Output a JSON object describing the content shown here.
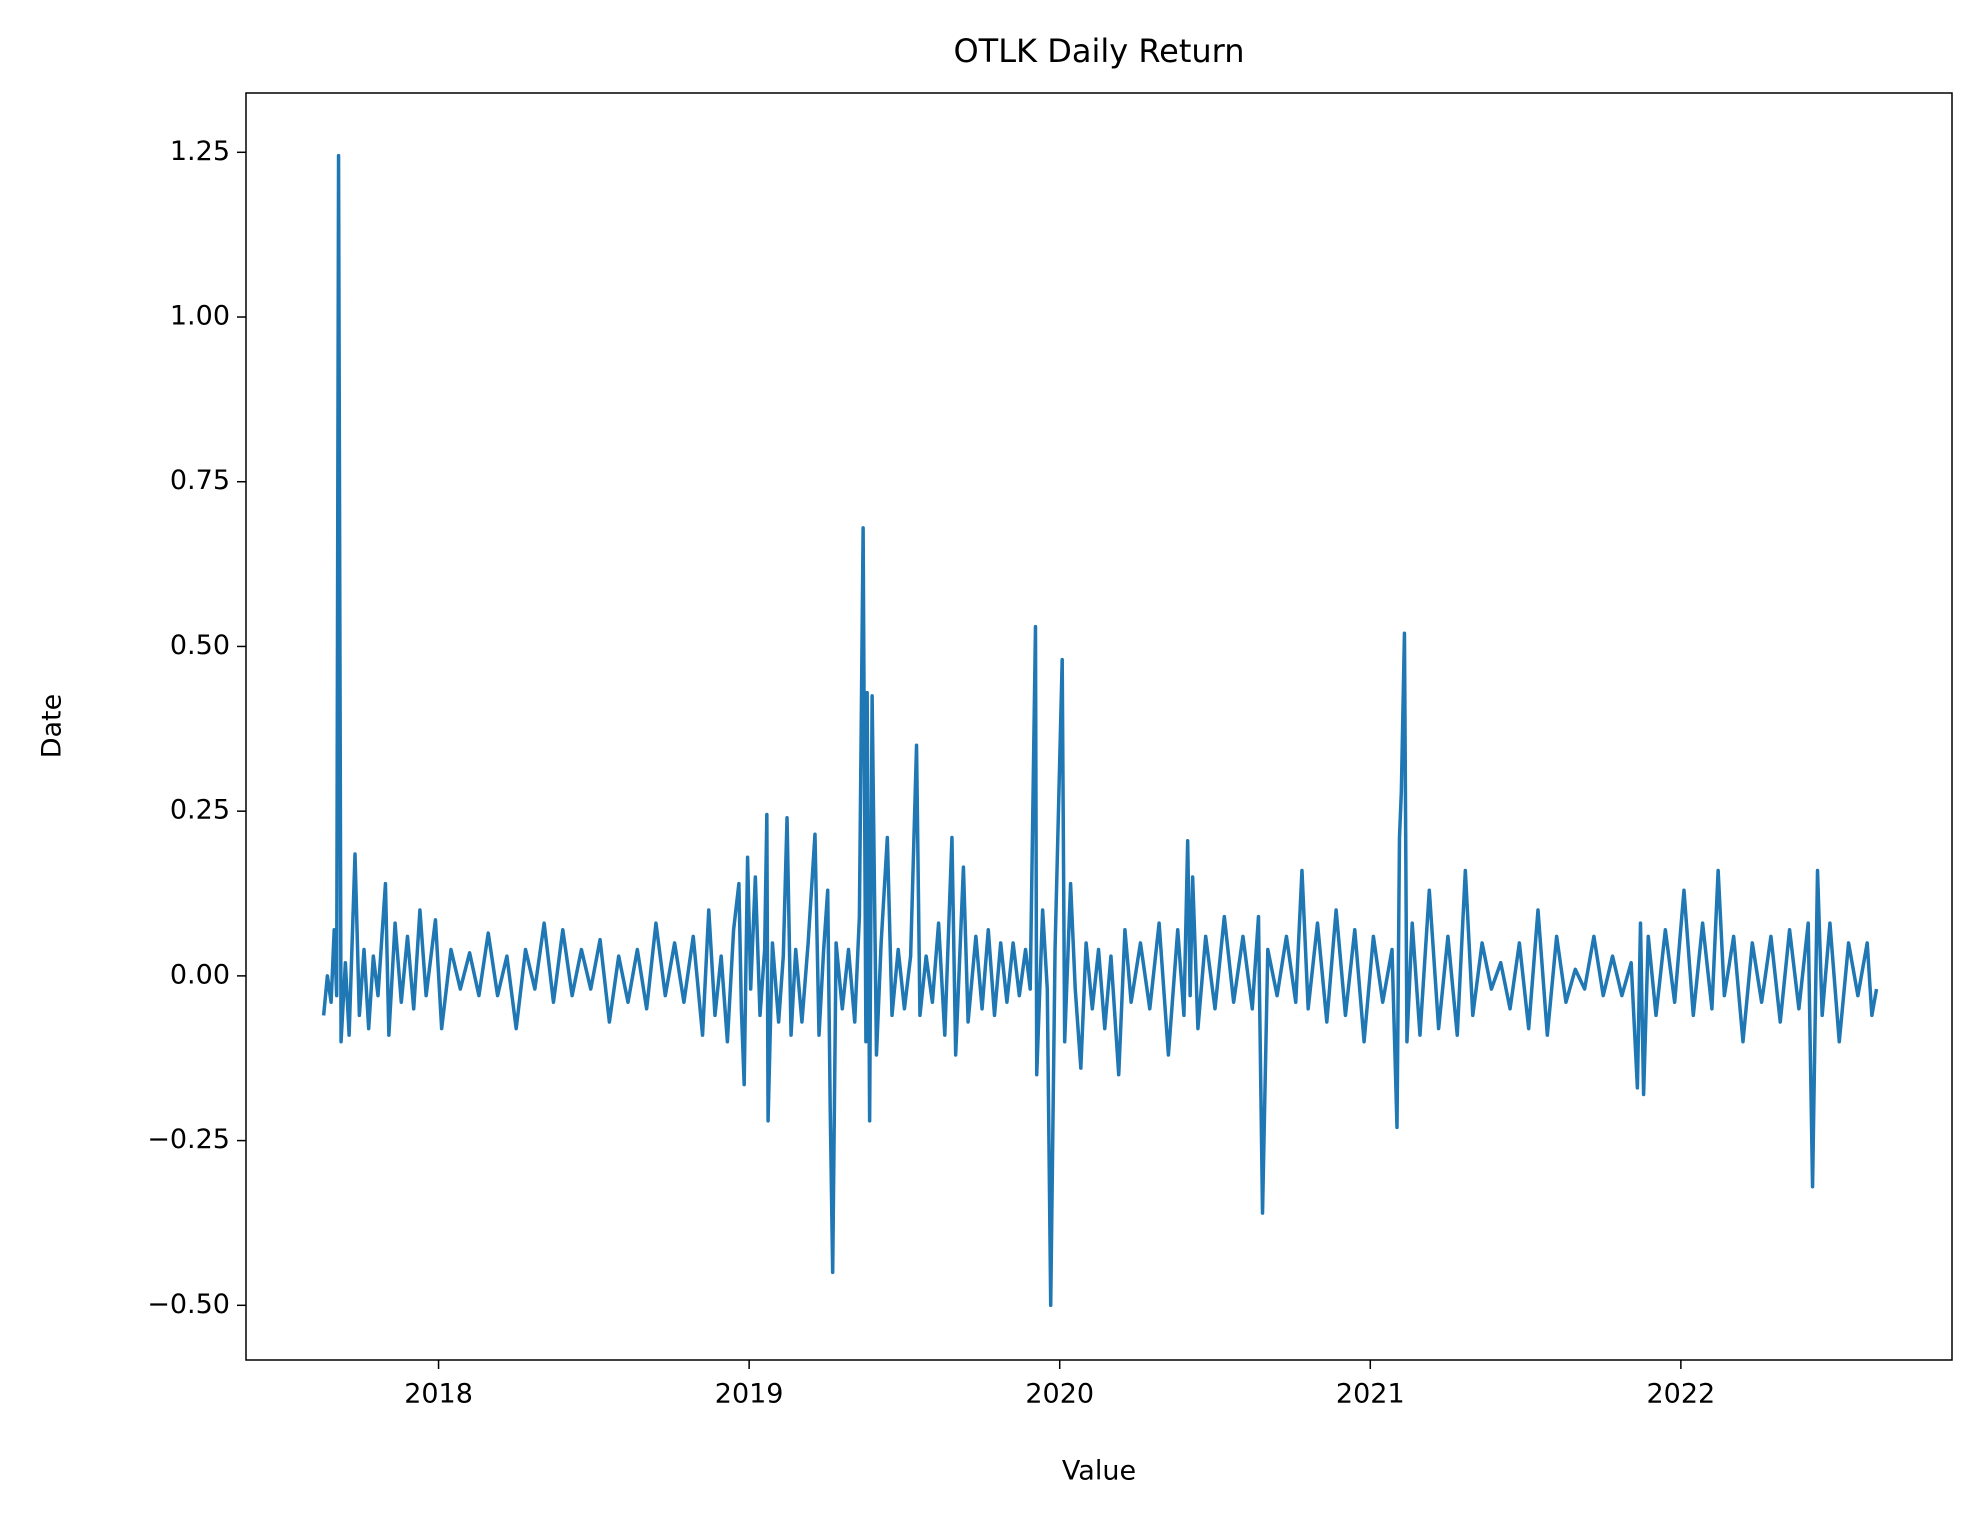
{
  "chart_data": {
    "type": "line",
    "title": "OTLK Daily Return",
    "xlabel": "Value",
    "ylabel": "Date",
    "color": "#1f77b4",
    "grid": false,
    "xlim": [
      2017.38,
      2022.873
    ],
    "xticks": [
      2018,
      2019,
      2020,
      2021,
      2022
    ],
    "ylim": [
      -0.583,
      1.34
    ],
    "yticks": [
      {
        "value": -0.5,
        "label": "−0.50"
      },
      {
        "value": -0.25,
        "label": "−0.25"
      },
      {
        "value": 0,
        "label": "0.00"
      },
      0.25,
      {
        "value": 0.5,
        "label": "0.50"
      },
      {
        "value": 0.75,
        "label": "0.75"
      },
      {
        "value": 1,
        "label": "1.00"
      },
      1.25
    ],
    "x": [
      2017.63,
      2017.642,
      2017.654,
      2017.664,
      2017.672,
      2017.678,
      2017.686,
      2017.7,
      2017.712,
      2017.731,
      2017.745,
      2017.76,
      2017.775,
      2017.79,
      2017.805,
      2017.829,
      2017.84,
      2017.86,
      2017.88,
      2017.9,
      2017.92,
      2017.94,
      2017.96,
      2017.99,
      2018.01,
      2018.04,
      2018.07,
      2018.1,
      2018.13,
      2018.16,
      2018.19,
      2018.22,
      2018.25,
      2018.28,
      2018.31,
      2018.34,
      2018.37,
      2018.4,
      2018.43,
      2018.46,
      2018.49,
      2018.52,
      2018.55,
      2018.58,
      2018.61,
      2018.64,
      2018.67,
      2018.7,
      2018.73,
      2018.76,
      2018.79,
      2018.82,
      2018.85,
      2018.87,
      2018.89,
      2018.91,
      2018.93,
      2018.95,
      2018.967,
      2018.975,
      2018.984,
      2018.995,
      2019.005,
      2019.02,
      2019.035,
      2019.05,
      2019.057,
      2019.061,
      2019.075,
      2019.095,
      2019.11,
      2019.122,
      2019.135,
      2019.15,
      2019.17,
      2019.19,
      2019.212,
      2019.225,
      2019.24,
      2019.253,
      2019.261,
      2019.269,
      2019.28,
      2019.3,
      2019.32,
      2019.34,
      2019.355,
      2019.367,
      2019.376,
      2019.38,
      2019.388,
      2019.396,
      2019.41,
      2019.425,
      2019.445,
      2019.46,
      2019.48,
      2019.5,
      2019.52,
      2019.539,
      2019.55,
      2019.57,
      2019.59,
      2019.61,
      2019.63,
      2019.653,
      2019.665,
      2019.69,
      2019.705,
      2019.73,
      2019.75,
      2019.77,
      2019.79,
      2019.81,
      2019.83,
      2019.85,
      2019.87,
      2019.89,
      2019.905,
      2019.922,
      2019.926,
      2019.945,
      2019.96,
      2019.971,
      2019.985,
      2020.008,
      2020.016,
      2020.035,
      2020.05,
      2020.068,
      2020.085,
      2020.105,
      2020.125,
      2020.145,
      2020.165,
      2020.19,
      2020.21,
      2020.23,
      2020.26,
      2020.29,
      2020.32,
      2020.35,
      2020.38,
      2020.4,
      2020.412,
      2020.42,
      2020.428,
      2020.445,
      2020.47,
      2020.5,
      2020.53,
      2020.56,
      2020.59,
      2020.62,
      2020.64,
      2020.653,
      2020.67,
      2020.7,
      2020.73,
      2020.76,
      2020.78,
      2020.8,
      2020.83,
      2020.86,
      2020.89,
      2020.92,
      2020.95,
      2020.98,
      2021.01,
      2021.04,
      2021.07,
      2021.086,
      2021.094,
      2021.1,
      2021.11,
      2021.118,
      2021.135,
      2021.16,
      2021.19,
      2021.22,
      2021.25,
      2021.28,
      2021.306,
      2021.33,
      2021.36,
      2021.39,
      2021.42,
      2021.45,
      2021.48,
      2021.51,
      2021.54,
      2021.57,
      2021.6,
      2021.63,
      2021.66,
      2021.69,
      2021.72,
      2021.75,
      2021.78,
      2021.81,
      2021.84,
      2021.86,
      2021.87,
      2021.88,
      2021.895,
      2021.92,
      2021.95,
      2021.98,
      2022.01,
      2022.04,
      2022.07,
      2022.1,
      2022.12,
      2022.14,
      2022.17,
      2022.2,
      2022.23,
      2022.26,
      2022.29,
      2022.32,
      2022.35,
      2022.38,
      2022.41,
      2022.424,
      2022.44,
      2022.455,
      2022.48,
      2022.51,
      2022.54,
      2022.57,
      2022.6,
      2022.615,
      2022.63
    ],
    "values": [
      -0.06,
      0.0,
      -0.04,
      0.07,
      -0.03,
      1.245,
      -0.1,
      0.02,
      -0.09,
      0.185,
      -0.06,
      0.04,
      -0.08,
      0.03,
      -0.03,
      0.14,
      -0.09,
      0.08,
      -0.04,
      0.06,
      -0.05,
      0.1,
      -0.03,
      0.085,
      -0.08,
      0.04,
      -0.02,
      0.035,
      -0.03,
      0.065,
      -0.03,
      0.03,
      -0.08,
      0.04,
      -0.02,
      0.08,
      -0.04,
      0.07,
      -0.03,
      0.04,
      -0.02,
      0.055,
      -0.07,
      0.03,
      -0.04,
      0.04,
      -0.05,
      0.08,
      -0.03,
      0.05,
      -0.04,
      0.06,
      -0.09,
      0.1,
      -0.06,
      0.03,
      -0.1,
      0.07,
      0.14,
      -0.05,
      -0.165,
      0.18,
      -0.02,
      0.15,
      -0.06,
      0.04,
      0.245,
      -0.22,
      0.05,
      -0.07,
      0.03,
      0.24,
      -0.09,
      0.04,
      -0.07,
      0.05,
      0.215,
      -0.09,
      0.04,
      0.13,
      -0.2,
      -0.45,
      0.05,
      -0.05,
      0.04,
      -0.07,
      0.09,
      0.68,
      -0.1,
      0.43,
      -0.22,
      0.425,
      -0.12,
      0.05,
      0.21,
      -0.06,
      0.04,
      -0.05,
      0.03,
      0.35,
      -0.06,
      0.03,
      -0.04,
      0.08,
      -0.09,
      0.21,
      -0.12,
      0.165,
      -0.07,
      0.06,
      -0.05,
      0.07,
      -0.06,
      0.05,
      -0.04,
      0.05,
      -0.03,
      0.04,
      -0.02,
      0.53,
      -0.15,
      0.1,
      -0.02,
      -0.5,
      0.04,
      0.48,
      -0.1,
      0.14,
      -0.02,
      -0.14,
      0.05,
      -0.05,
      0.04,
      -0.08,
      0.03,
      -0.15,
      0.07,
      -0.04,
      0.05,
      -0.05,
      0.08,
      -0.12,
      0.07,
      -0.06,
      0.205,
      -0.03,
      0.15,
      -0.08,
      0.06,
      -0.05,
      0.09,
      -0.04,
      0.06,
      -0.05,
      0.09,
      -0.36,
      0.04,
      -0.03,
      0.06,
      -0.04,
      0.16,
      -0.05,
      0.08,
      -0.07,
      0.1,
      -0.06,
      0.07,
      -0.1,
      0.06,
      -0.04,
      0.04,
      -0.23,
      0.21,
      0.28,
      0.52,
      -0.1,
      0.08,
      -0.09,
      0.13,
      -0.08,
      0.06,
      -0.09,
      0.16,
      -0.06,
      0.05,
      -0.02,
      0.02,
      -0.05,
      0.05,
      -0.08,
      0.1,
      -0.09,
      0.06,
      -0.04,
      0.01,
      -0.02,
      0.06,
      -0.03,
      0.03,
      -0.03,
      0.02,
      -0.17,
      0.08,
      -0.18,
      0.06,
      -0.06,
      0.07,
      -0.04,
      0.13,
      -0.06,
      0.08,
      -0.05,
      0.16,
      -0.03,
      0.06,
      -0.1,
      0.05,
      -0.04,
      0.06,
      -0.07,
      0.07,
      -0.05,
      0.08,
      -0.32,
      0.16,
      -0.06,
      0.08,
      -0.1,
      0.05,
      -0.03,
      0.05,
      -0.06,
      -0.02
    ]
  }
}
